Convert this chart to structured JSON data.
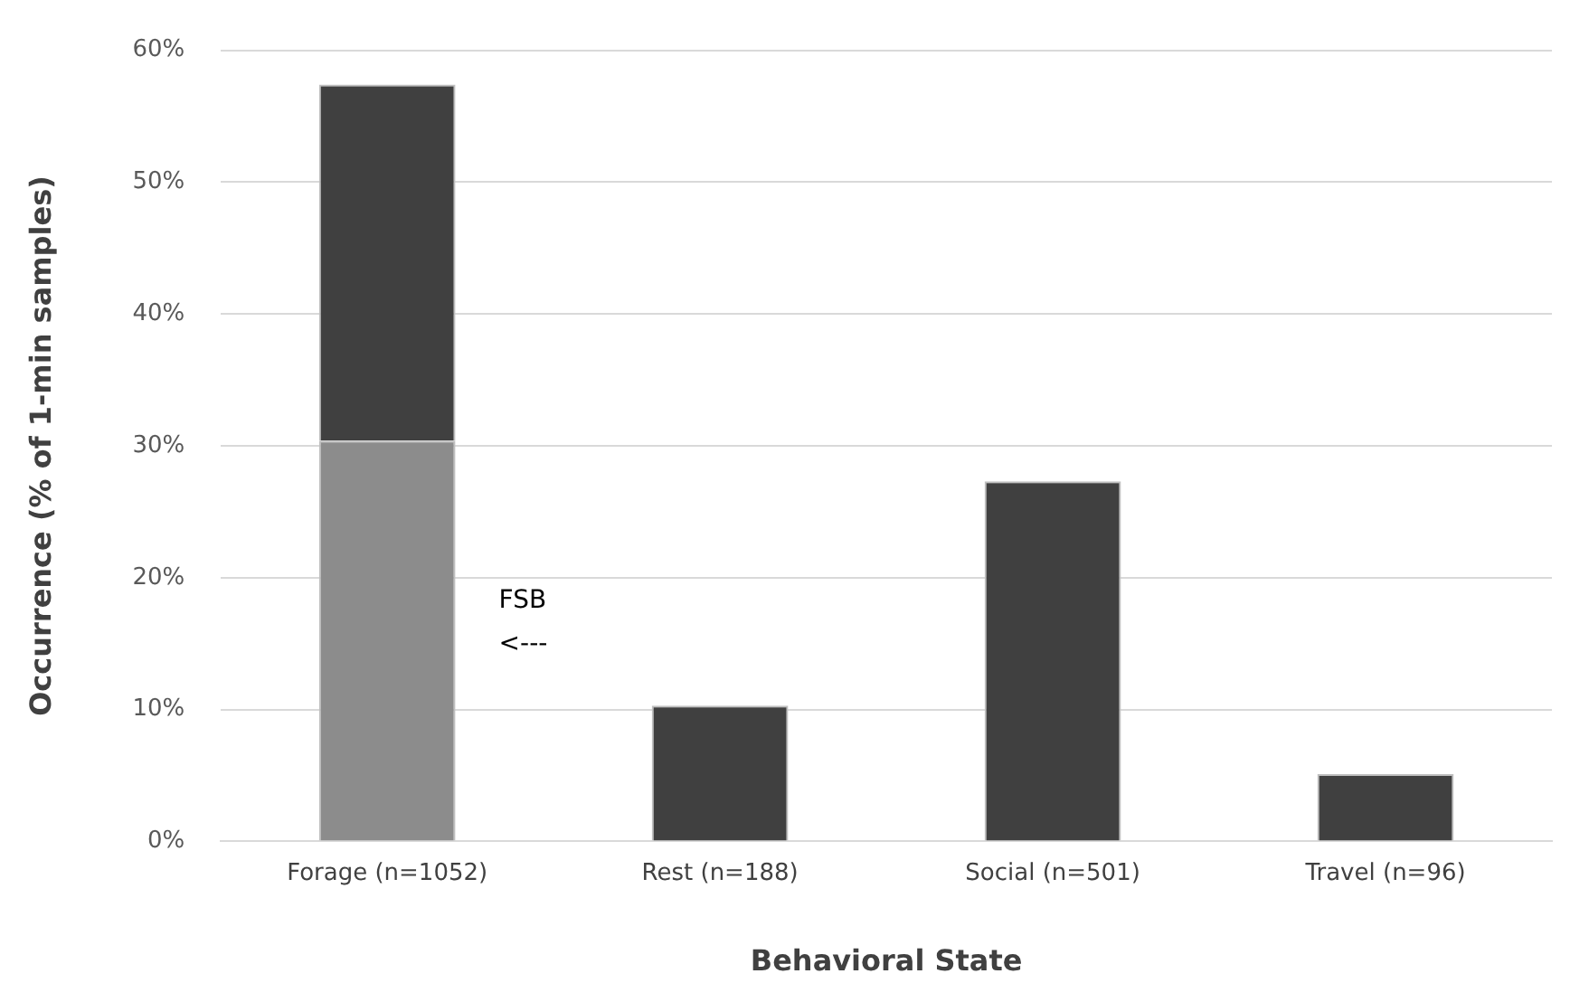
{
  "chart_data": {
    "type": "bar",
    "xlabel": "Behavioral State",
    "ylabel": "Occurrence (% of 1-min samples)",
    "categories": [
      "Forage (n=1052)",
      "Rest (n=188)",
      "Social (n=501)",
      "Travel (n=96)"
    ],
    "stacked": true,
    "series": [
      {
        "color": "#8c8c8c",
        "values": [
          30.4,
          null,
          null,
          null
        ]
      },
      {
        "color": "#404040",
        "values": [
          27.0,
          10.3,
          27.3,
          5.1
        ]
      }
    ],
    "ylim": [
      0,
      60
    ],
    "yticks": [
      {
        "value": 0,
        "label": "0%"
      },
      {
        "value": 10,
        "label": "10%"
      },
      {
        "value": 20,
        "label": "20%"
      },
      {
        "value": 30,
        "label": "30%"
      },
      {
        "value": 40,
        "label": "40%"
      },
      {
        "value": 50,
        "label": "50%"
      },
      {
        "value": 60,
        "label": "60%"
      }
    ],
    "grid": "y",
    "legend": false,
    "annotations": [
      "FSB",
      "<---"
    ]
  }
}
